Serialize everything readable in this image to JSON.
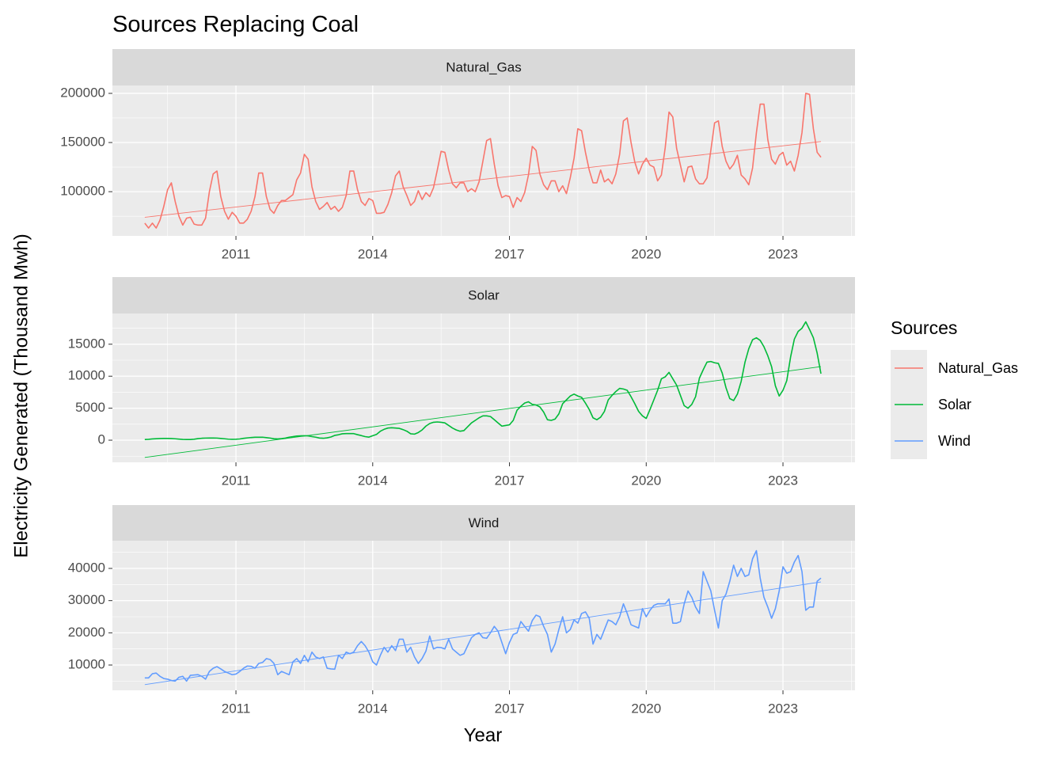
{
  "chart_data": {
    "type": "line",
    "title": "Sources Replacing Coal",
    "x_label": "Year",
    "y_label": "Electricity Generated (Thousand Mwh)",
    "legend_title": "Sources",
    "grid": true,
    "xlim": [
      2008.29,
      2024.58
    ],
    "xticks": [
      2011,
      2014,
      2017,
      2020,
      2023
    ],
    "x": [
      2009,
      2009.083,
      2009.167,
      2009.25,
      2009.333,
      2009.417,
      2009.5,
      2009.583,
      2009.667,
      2009.75,
      2009.833,
      2009.917,
      2010,
      2010.083,
      2010.167,
      2010.25,
      2010.333,
      2010.417,
      2010.5,
      2010.583,
      2010.667,
      2010.75,
      2010.833,
      2010.917,
      2011,
      2011.083,
      2011.167,
      2011.25,
      2011.333,
      2011.417,
      2011.5,
      2011.583,
      2011.667,
      2011.75,
      2011.833,
      2011.917,
      2012,
      2012.083,
      2012.167,
      2012.25,
      2012.333,
      2012.417,
      2012.5,
      2012.583,
      2012.667,
      2012.75,
      2012.833,
      2012.917,
      2013,
      2013.083,
      2013.167,
      2013.25,
      2013.333,
      2013.417,
      2013.5,
      2013.583,
      2013.667,
      2013.75,
      2013.833,
      2013.917,
      2014,
      2014.083,
      2014.167,
      2014.25,
      2014.333,
      2014.417,
      2014.5,
      2014.583,
      2014.667,
      2014.75,
      2014.833,
      2014.917,
      2015,
      2015.083,
      2015.167,
      2015.25,
      2015.333,
      2015.417,
      2015.5,
      2015.583,
      2015.667,
      2015.75,
      2015.833,
      2015.917,
      2016,
      2016.083,
      2016.167,
      2016.25,
      2016.333,
      2016.417,
      2016.5,
      2016.583,
      2016.667,
      2016.75,
      2016.833,
      2016.917,
      2017,
      2017.083,
      2017.167,
      2017.25,
      2017.333,
      2017.417,
      2017.5,
      2017.583,
      2017.667,
      2017.75,
      2017.833,
      2017.917,
      2018,
      2018.083,
      2018.167,
      2018.25,
      2018.333,
      2018.417,
      2018.5,
      2018.583,
      2018.667,
      2018.75,
      2018.833,
      2018.917,
      2019,
      2019.083,
      2019.167,
      2019.25,
      2019.333,
      2019.417,
      2019.5,
      2019.583,
      2019.667,
      2019.75,
      2019.833,
      2019.917,
      2020,
      2020.083,
      2020.167,
      2020.25,
      2020.333,
      2020.417,
      2020.5,
      2020.583,
      2020.667,
      2020.75,
      2020.833,
      2020.917,
      2021,
      2021.083,
      2021.167,
      2021.25,
      2021.333,
      2021.417,
      2021.5,
      2021.583,
      2021.667,
      2021.75,
      2021.833,
      2021.917,
      2022,
      2022.083,
      2022.167,
      2022.25,
      2022.333,
      2022.417,
      2022.5,
      2022.583,
      2022.667,
      2022.75,
      2022.833,
      2022.917,
      2023,
      2023.083,
      2023.167,
      2023.25,
      2023.333,
      2023.417,
      2023.5,
      2023.583,
      2023.667,
      2023.75,
      2023.833
    ],
    "series": [
      {
        "name": "Natural_Gas",
        "color": "#f8766d",
        "ylim": [
          55000,
          208000
        ],
        "yticks": [
          100000,
          150000,
          200000
        ],
        "trend": [
          74000,
          151000
        ],
        "values": [
          68000,
          63000,
          68000,
          63000,
          71000,
          85000,
          102000,
          109000,
          90000,
          75000,
          66000,
          73000,
          74000,
          67000,
          66000,
          66000,
          73000,
          100000,
          118000,
          121000,
          95000,
          80000,
          72000,
          79000,
          75000,
          68000,
          68000,
          72000,
          80000,
          95000,
          119000,
          119000,
          95000,
          82000,
          78000,
          86000,
          91000,
          91000,
          94000,
          97000,
          112000,
          119000,
          138000,
          133000,
          105000,
          90000,
          82000,
          85000,
          89000,
          82000,
          85000,
          80000,
          84000,
          96000,
          121000,
          121000,
          102000,
          90000,
          86000,
          93000,
          91000,
          78000,
          78000,
          79000,
          87000,
          99000,
          116000,
          121000,
          105000,
          96000,
          86000,
          90000,
          101000,
          92000,
          99000,
          95000,
          104000,
          122000,
          141000,
          140000,
          122000,
          108000,
          104000,
          109000,
          109000,
          100000,
          103000,
          100000,
          110000,
          131000,
          152000,
          154000,
          128000,
          106000,
          94000,
          96000,
          95000,
          84000,
          94000,
          90000,
          99000,
          117000,
          146000,
          142000,
          118000,
          107000,
          102000,
          111000,
          111000,
          100000,
          106000,
          98000,
          114000,
          134000,
          164000,
          162000,
          140000,
          122000,
          109000,
          109000,
          122000,
          110000,
          113000,
          108000,
          118000,
          138000,
          172000,
          175000,
          150000,
          130000,
          118000,
          128000,
          134000,
          127000,
          125000,
          111000,
          117000,
          145000,
          181000,
          176000,
          144000,
          127000,
          110000,
          125000,
          126000,
          113000,
          108000,
          108000,
          114000,
          142000,
          170000,
          172000,
          146000,
          131000,
          123000,
          128000,
          137000,
          117000,
          113000,
          107000,
          124000,
          160000,
          189000,
          189000,
          153000,
          133000,
          128000,
          137000,
          140000,
          127000,
          131000,
          121000,
          137000,
          160000,
          200000,
          199000,
          164000,
          140000,
          135000
        ]
      },
      {
        "name": "Solar",
        "color": "#00ba38",
        "ylim": [
          -3460,
          19800
        ],
        "yticks": [
          0,
          5000,
          10000,
          15000
        ],
        "trend": [
          -2700,
          11500
        ],
        "values": [
          100,
          130,
          200,
          230,
          260,
          270,
          270,
          260,
          220,
          170,
          120,
          100,
          110,
          150,
          240,
          300,
          330,
          340,
          340,
          330,
          280,
          220,
          160,
          130,
          150,
          190,
          290,
          360,
          420,
          460,
          460,
          470,
          400,
          330,
          230,
          200,
          250,
          320,
          470,
          550,
          650,
          680,
          700,
          680,
          560,
          470,
          340,
          300,
          370,
          500,
          750,
          850,
          1000,
          1030,
          1040,
          1030,
          860,
          720,
          560,
          480,
          700,
          900,
          1400,
          1700,
          1900,
          1950,
          1900,
          1850,
          1650,
          1400,
          1000,
          950,
          1200,
          1600,
          2200,
          2600,
          2800,
          2850,
          2800,
          2700,
          2300,
          1900,
          1600,
          1400,
          1500,
          2100,
          2700,
          3100,
          3500,
          3800,
          3800,
          3700,
          3200,
          2700,
          2200,
          2300,
          2400,
          3100,
          4700,
          5300,
          5800,
          6000,
          5600,
          5500,
          5200,
          4400,
          3200,
          3100,
          3300,
          4100,
          5700,
          6300,
          6900,
          7200,
          6900,
          6700,
          5800,
          4800,
          3500,
          3200,
          3600,
          4500,
          6300,
          7000,
          7600,
          8100,
          8000,
          7800,
          6800,
          5700,
          4500,
          3800,
          3400,
          4800,
          6300,
          7800,
          9600,
          9900,
          10600,
          9600,
          8600,
          7000,
          5400,
          5000,
          5600,
          6800,
          9700,
          11000,
          12200,
          12300,
          12100,
          12000,
          10500,
          8200,
          6500,
          6200,
          7200,
          9200,
          12200,
          14300,
          15700,
          16000,
          15600,
          14600,
          13200,
          11500,
          8500,
          6900,
          7800,
          9300,
          13000,
          15800,
          17000,
          17500,
          18500,
          17300,
          16000,
          13600,
          10400
        ]
      },
      {
        "name": "Wind",
        "color": "#619cff",
        "ylim": [
          2140,
          48600
        ],
        "yticks": [
          10000,
          20000,
          30000,
          40000
        ],
        "trend": [
          3900,
          35800
        ],
        "values": [
          6000,
          6000,
          7300,
          7500,
          6500,
          5800,
          5600,
          5200,
          5000,
          6200,
          6500,
          5000,
          6800,
          6900,
          7000,
          6500,
          5600,
          8000,
          9000,
          9500,
          8800,
          8000,
          7500,
          7000,
          7200,
          8000,
          9000,
          9700,
          9600,
          9000,
          10500,
          10800,
          12000,
          11700,
          10500,
          7000,
          8000,
          7500,
          7000,
          11000,
          12000,
          10500,
          13000,
          11000,
          14000,
          12500,
          12000,
          12500,
          9000,
          8800,
          8700,
          13000,
          12000,
          14000,
          13500,
          14000,
          16000,
          17300,
          16000,
          14000,
          11000,
          10000,
          13000,
          15500,
          14000,
          16000,
          14500,
          18000,
          18000,
          14000,
          15500,
          12500,
          10500,
          12000,
          14300,
          19000,
          15000,
          15500,
          15400,
          15000,
          18000,
          15000,
          14000,
          13000,
          13500,
          16000,
          18500,
          19500,
          20000,
          18500,
          18300,
          20000,
          22000,
          20500,
          17000,
          13500,
          17000,
          19500,
          20000,
          23500,
          22000,
          20500,
          23800,
          25500,
          25000,
          22000,
          19500,
          14000,
          16500,
          21000,
          25000,
          20000,
          21000,
          24000,
          23000,
          26000,
          26500,
          24500,
          16500,
          19500,
          18000,
          21000,
          24000,
          23500,
          22500,
          25000,
          29000,
          26000,
          22500,
          22000,
          21500,
          27500,
          25000,
          27000,
          28500,
          29000,
          29000,
          29000,
          30500,
          23000,
          23000,
          23500,
          29000,
          33000,
          31000,
          28000,
          26000,
          39000,
          36000,
          33000,
          27000,
          21500,
          30000,
          32000,
          36000,
          41000,
          37500,
          40000,
          37500,
          38000,
          43000,
          45500,
          37000,
          31000,
          28000,
          24500,
          27500,
          33000,
          40500,
          38500,
          39000,
          42000,
          44000,
          39000,
          27000,
          28000,
          28000,
          36000,
          37000
        ]
      }
    ]
  }
}
